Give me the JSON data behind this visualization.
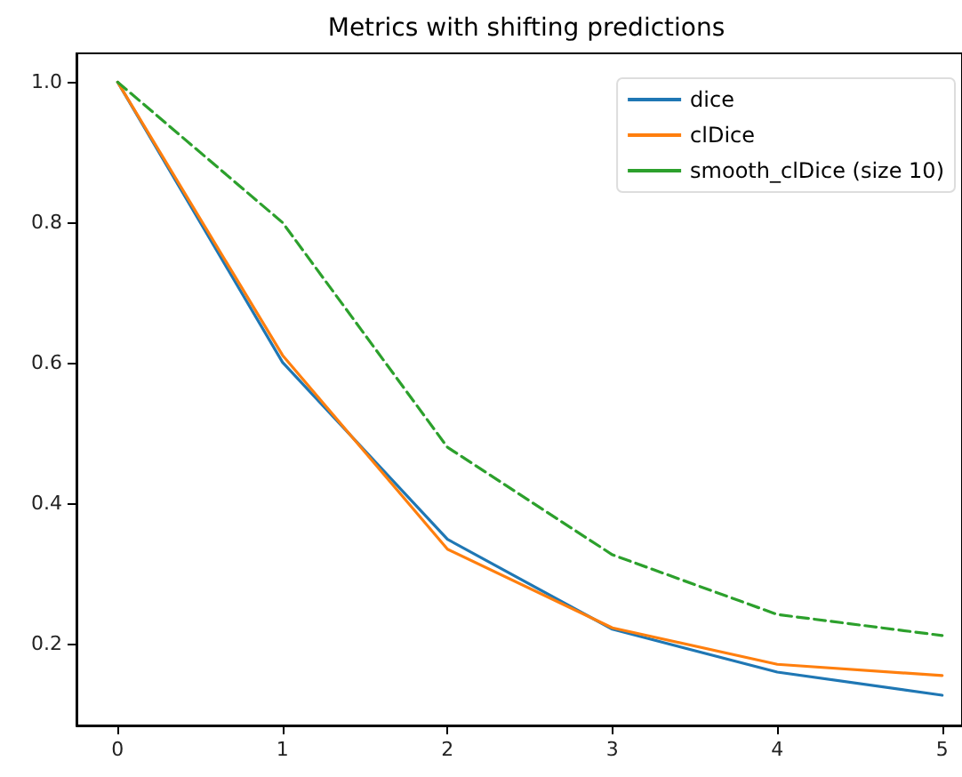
{
  "chart_data": {
    "type": "line",
    "title": "Metrics with shifting predictions",
    "x": [
      0,
      1,
      2,
      3,
      4,
      5
    ],
    "series": [
      {
        "name": "dice",
        "color": "#1f77b4",
        "values": [
          1.0,
          0.601,
          0.349,
          0.221,
          0.16,
          0.127
        ]
      },
      {
        "name": "clDice",
        "color": "#ff7f0e",
        "values": [
          1.0,
          0.611,
          0.335,
          0.223,
          0.171,
          0.155
        ]
      },
      {
        "name": "smooth_clDice (size 10)",
        "color": "#2ca02c",
        "line_style": "dashed",
        "values": [
          1.0,
          0.8,
          0.48,
          0.327,
          0.242,
          0.212
        ]
      }
    ],
    "xlim": [
      -0.25,
      5.12
    ],
    "xticks": [
      0,
      1,
      2,
      3,
      4,
      5
    ],
    "ylim": [
      0.084,
      1.041
    ],
    "yticks": [
      {
        "value": 0.2,
        "label": "0.2"
      },
      {
        "value": 0.4,
        "label": "0.4"
      },
      {
        "value": 0.6,
        "label": "0.6"
      },
      {
        "value": 0.8,
        "label": "0.8"
      },
      {
        "value": 1.0,
        "label": "1.0"
      }
    ],
    "legend": "top right",
    "grid": false,
    "marker": "none",
    "line_style": "solid"
  }
}
